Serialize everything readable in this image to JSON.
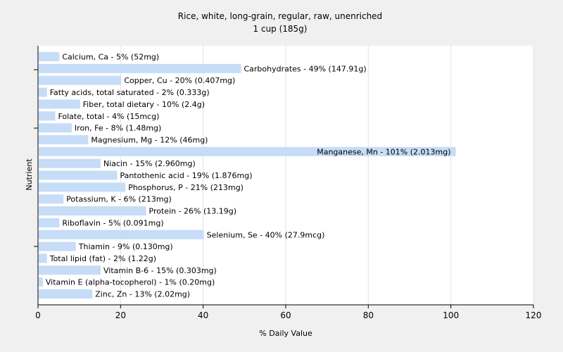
{
  "chart_data": {
    "type": "bar",
    "orientation": "horizontal",
    "title": "Rice, white, long-grain, regular, raw, unenriched",
    "subtitle": "1 cup (185g)",
    "xlabel": "% Daily Value",
    "ylabel": "Nutrient",
    "xlim": [
      0,
      120
    ],
    "xticks": [
      0,
      20,
      40,
      60,
      80,
      100,
      120
    ],
    "grid": true,
    "bar_color": "#c6dcf7",
    "plot_background": "#ffffff",
    "page_background": "#f0f0f0",
    "categories": [
      "Calcium, Ca",
      "Carbohydrates",
      "Copper, Cu",
      "Fatty acids, total saturated",
      "Fiber, total dietary",
      "Folate, total",
      "Iron, Fe",
      "Magnesium, Mg",
      "Manganese, Mn",
      "Niacin",
      "Pantothenic acid",
      "Phosphorus, P",
      "Potassium, K",
      "Protein",
      "Riboflavin",
      "Selenium, Se",
      "Thiamin",
      "Total lipid (fat)",
      "Vitamin B-6",
      "Vitamin E (alpha-tocopherol)",
      "Zinc, Zn"
    ],
    "values": [
      5,
      49,
      20,
      2,
      10,
      4,
      8,
      12,
      101,
      15,
      19,
      21,
      6,
      26,
      5,
      40,
      9,
      2,
      15,
      1,
      13
    ],
    "labels": [
      "Calcium, Ca - 5% (52mg)",
      "Carbohydrates - 49% (147.91g)",
      "Copper, Cu - 20% (0.407mg)",
      "Fatty acids, total saturated - 2% (0.333g)",
      "Fiber, total dietary - 10% (2.4g)",
      "Folate, total - 4% (15mcg)",
      "Iron, Fe - 8% (1.48mg)",
      "Magnesium, Mg - 12% (46mg)",
      "Manganese, Mn - 101% (2.013mg)",
      "Niacin - 15% (2.960mg)",
      "Pantothenic acid - 19% (1.876mg)",
      "Phosphorus, P - 21% (213mg)",
      "Potassium, K - 6% (213mg)",
      "Protein - 26% (13.19g)",
      "Riboflavin - 5% (0.091mg)",
      "Selenium, Se - 40% (27.9mcg)",
      "Thiamin - 9% (0.130mg)",
      "Total lipid (fat) - 2% (1.22g)",
      "Vitamin B-6 - 15% (0.303mg)",
      "Vitamin E (alpha-tocopherol) - 1% (0.20mg)",
      "Zinc, Zn - 13% (2.02mg)"
    ]
  }
}
